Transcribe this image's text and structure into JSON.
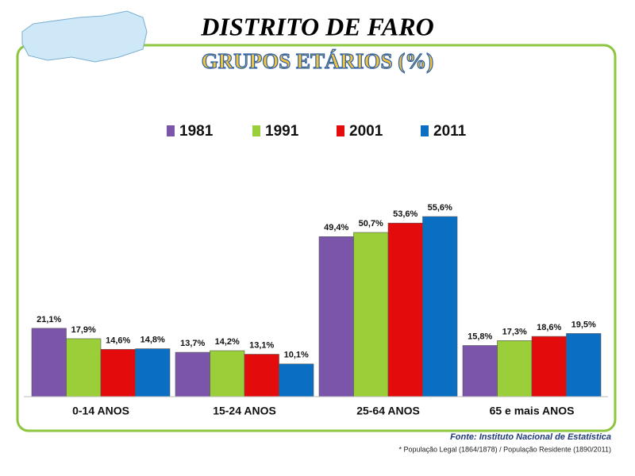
{
  "chart_data": {
    "type": "bar",
    "title": "DISTRITO DE FARO",
    "subtitle": "GRUPOS ETÁRIOS (%)",
    "categories": [
      "0-14 ANOS",
      "15-24 ANOS",
      "25-64 ANOS",
      "65 e mais ANOS"
    ],
    "series": [
      {
        "name": "1981",
        "color": "#7b55aa",
        "values": [
          21.1,
          13.7,
          49.4,
          15.8
        ],
        "value_labels": [
          "21,1%",
          "13,7%",
          "49,4%",
          "15,8%"
        ]
      },
      {
        "name": "1991",
        "color": "#9bcf3a",
        "values": [
          17.9,
          14.2,
          50.7,
          17.3
        ],
        "value_labels": [
          "17,9%",
          "14,2%",
          "50,7%",
          "17,3%"
        ]
      },
      {
        "name": "2001",
        "color": "#e30b0b",
        "values": [
          14.6,
          13.1,
          53.6,
          18.6
        ],
        "value_labels": [
          "14,6%",
          "13,1%",
          "53,6%",
          "18,6%"
        ]
      },
      {
        "name": "2011",
        "color": "#0a6fc2",
        "values": [
          14.8,
          10.1,
          55.6,
          19.5
        ],
        "value_labels": [
          "14,8%",
          "10,1%",
          "55,6%",
          "19,5%"
        ]
      }
    ],
    "source": "Fonte: Instituto Nacional de Estatística",
    "note": "* População Legal (1864/1878) / População Residente (1890/2011)"
  }
}
